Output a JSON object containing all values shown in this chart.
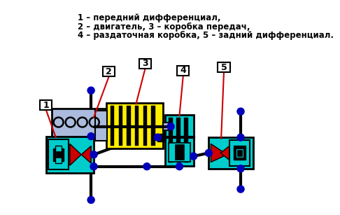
{
  "bg_color": "#ffffff",
  "text_line1": "1 – передний дифференциал,",
  "text_line2": "2 – двигатель, 3 – коробка передач,",
  "text_line3": "4 – раздаточная коробка, 5 – задний дифференциал.",
  "cyan": "#00cccc",
  "yellow": "#ffee00",
  "yellow_dark": "#ccaa00",
  "blue_dot": "#0000bb",
  "black": "#000000",
  "white": "#ffffff",
  "red": "#cc0000",
  "light_blue": "#aabbdd",
  "gray_blue": "#99aacc"
}
